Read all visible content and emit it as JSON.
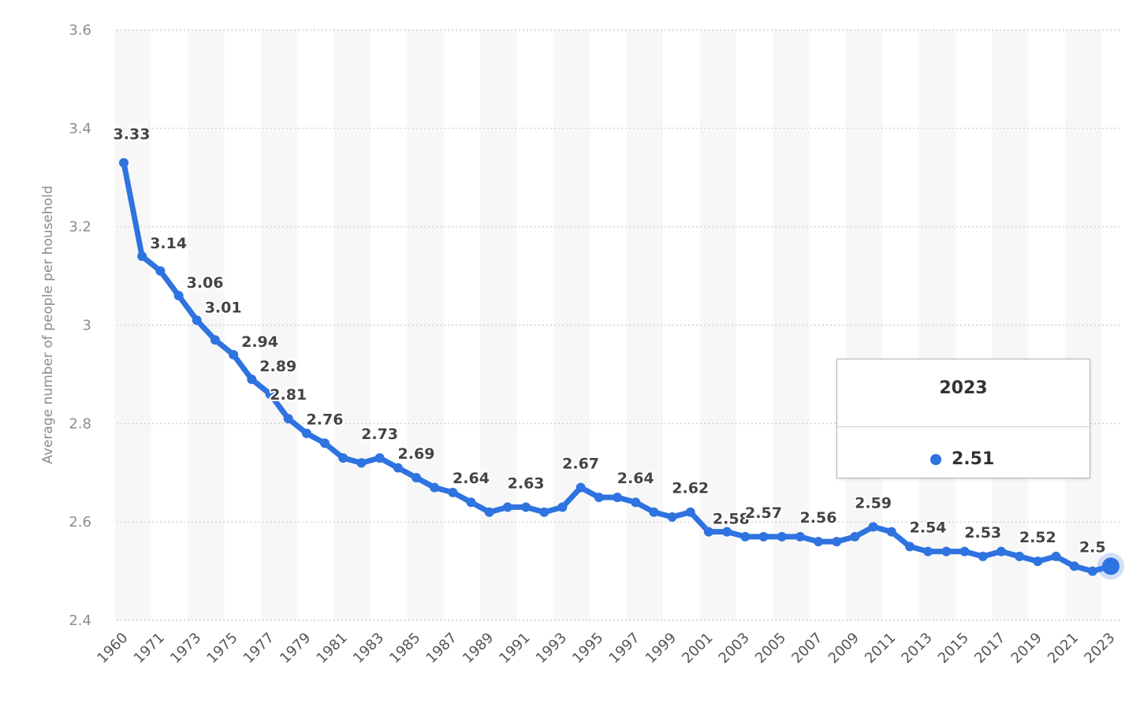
{
  "chart_data": {
    "type": "line",
    "ylabel": "Average number of people per household",
    "ylim": [
      2.4,
      3.6
    ],
    "yticks": [
      "3.6",
      "3.4",
      "3.2",
      "3",
      "2.8",
      "2.6",
      "2.4"
    ],
    "grid": "horizontal dotted",
    "x_tick_labels": [
      "1960",
      "1971",
      "1973",
      "1975",
      "1977",
      "1979",
      "1981",
      "1983",
      "1985",
      "1987",
      "1989",
      "1991",
      "1993",
      "1995",
      "1997",
      "1999",
      "2001",
      "2003",
      "2005",
      "2007",
      "2009",
      "2011",
      "2013",
      "2015",
      "2017",
      "2019",
      "2021",
      "2023"
    ],
    "series": [
      {
        "color": "#2e73e0",
        "points": [
          {
            "x": "1960",
            "y": 3.33,
            "label": "3.33"
          },
          {
            "x": "1970",
            "y": 3.14,
            "label": "3.14"
          },
          {
            "x": "1971",
            "y": 3.11,
            "label": ""
          },
          {
            "x": "1972",
            "y": 3.06,
            "label": "3.06"
          },
          {
            "x": "1973",
            "y": 3.01,
            "label": "3.01"
          },
          {
            "x": "1974",
            "y": 2.97,
            "label": ""
          },
          {
            "x": "1975",
            "y": 2.94,
            "label": "2.94"
          },
          {
            "x": "1976",
            "y": 2.89,
            "label": "2.89"
          },
          {
            "x": "1977",
            "y": 2.86,
            "label": ""
          },
          {
            "x": "1978",
            "y": 2.81,
            "label": "2.81"
          },
          {
            "x": "1979",
            "y": 2.78,
            "label": ""
          },
          {
            "x": "1980",
            "y": 2.76,
            "label": "2.76"
          },
          {
            "x": "1981",
            "y": 2.73,
            "label": ""
          },
          {
            "x": "1982",
            "y": 2.72,
            "label": ""
          },
          {
            "x": "1983",
            "y": 2.73,
            "label": "2.73"
          },
          {
            "x": "1984",
            "y": 2.71,
            "label": ""
          },
          {
            "x": "1985",
            "y": 2.69,
            "label": "2.69"
          },
          {
            "x": "1986",
            "y": 2.67,
            "label": ""
          },
          {
            "x": "1987",
            "y": 2.66,
            "label": ""
          },
          {
            "x": "1988",
            "y": 2.64,
            "label": "2.64"
          },
          {
            "x": "1989",
            "y": 2.62,
            "label": ""
          },
          {
            "x": "1990",
            "y": 2.63,
            "label": ""
          },
          {
            "x": "1991",
            "y": 2.63,
            "label": "2.63"
          },
          {
            "x": "1992",
            "y": 2.62,
            "label": ""
          },
          {
            "x": "1993",
            "y": 2.63,
            "label": ""
          },
          {
            "x": "1994",
            "y": 2.67,
            "label": "2.67"
          },
          {
            "x": "1995",
            "y": 2.65,
            "label": ""
          },
          {
            "x": "1996",
            "y": 2.65,
            "label": ""
          },
          {
            "x": "1997",
            "y": 2.64,
            "label": "2.64"
          },
          {
            "x": "1998",
            "y": 2.62,
            "label": ""
          },
          {
            "x": "1999",
            "y": 2.61,
            "label": ""
          },
          {
            "x": "2000",
            "y": 2.62,
            "label": "2.62"
          },
          {
            "x": "2001",
            "y": 2.58,
            "label": "2.58"
          },
          {
            "x": "2002",
            "y": 2.58,
            "label": ""
          },
          {
            "x": "2003",
            "y": 2.57,
            "label": ""
          },
          {
            "x": "2004",
            "y": 2.57,
            "label": "2.57"
          },
          {
            "x": "2005",
            "y": 2.57,
            "label": ""
          },
          {
            "x": "2006",
            "y": 2.57,
            "label": ""
          },
          {
            "x": "2007",
            "y": 2.56,
            "label": "2.56"
          },
          {
            "x": "2008",
            "y": 2.56,
            "label": ""
          },
          {
            "x": "2009",
            "y": 2.57,
            "label": ""
          },
          {
            "x": "2010",
            "y": 2.59,
            "label": "2.59"
          },
          {
            "x": "2011",
            "y": 2.58,
            "label": ""
          },
          {
            "x": "2012",
            "y": 2.55,
            "label": ""
          },
          {
            "x": "2013",
            "y": 2.54,
            "label": "2.54"
          },
          {
            "x": "2014",
            "y": 2.54,
            "label": ""
          },
          {
            "x": "2015",
            "y": 2.54,
            "label": ""
          },
          {
            "x": "2016",
            "y": 2.53,
            "label": "2.53"
          },
          {
            "x": "2017",
            "y": 2.54,
            "label": ""
          },
          {
            "x": "2018",
            "y": 2.53,
            "label": ""
          },
          {
            "x": "2019",
            "y": 2.52,
            "label": "2.52"
          },
          {
            "x": "2020",
            "y": 2.53,
            "label": ""
          },
          {
            "x": "2021",
            "y": 2.51,
            "label": ""
          },
          {
            "x": "2022",
            "y": 2.5,
            "label": "2.5"
          },
          {
            "x": "2023",
            "y": 2.51,
            "label": ""
          }
        ]
      }
    ]
  },
  "tooltip": {
    "title": "2023",
    "value": "2.51",
    "dot_color": "#2e73e0"
  }
}
